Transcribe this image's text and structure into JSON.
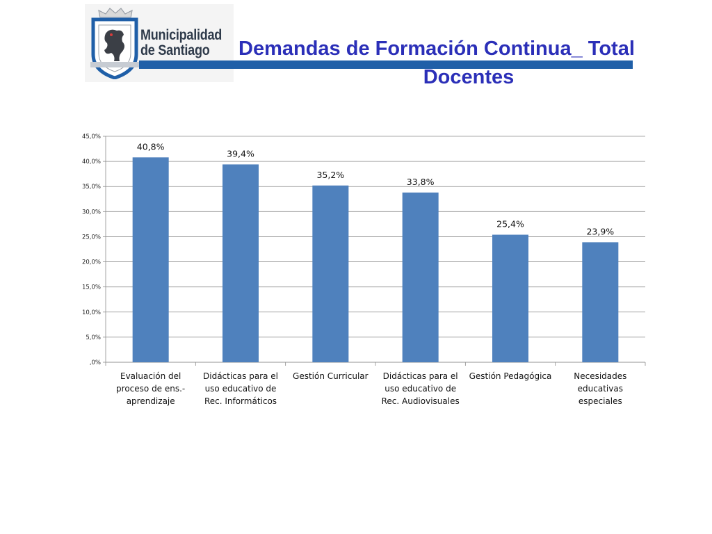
{
  "header": {
    "logo_line1": "Municipalidad",
    "logo_line2": "de Santiago",
    "title_line1": "Demandas de Formación Continua_ Total",
    "title_line2": "Docentes"
  },
  "colors": {
    "bar": "#4f81bd",
    "title": "#2b2fb8",
    "brand_bar": "#1f5fa8"
  },
  "chart_data": {
    "type": "bar",
    "categories": [
      [
        "Evaluación del",
        "proceso de ens.-",
        "aprendizaje"
      ],
      [
        "Didácticas para el",
        "uso educativo de",
        "Rec. Informáticos"
      ],
      [
        "Gestión Curricular"
      ],
      [
        "Didácticas para el",
        "uso educativo de",
        "Rec. Audiovisuales"
      ],
      [
        "Gestión Pedagógica"
      ],
      [
        "Necesidades",
        "educativas",
        "especiales"
      ]
    ],
    "values": [
      40.8,
      39.4,
      35.2,
      33.8,
      25.4,
      23.9
    ],
    "value_labels": [
      "40,8%",
      "39,4%",
      "35,2%",
      "33,8%",
      "25,4%",
      "23,9%"
    ],
    "ylim": [
      0,
      45
    ],
    "yticks": [
      0,
      5,
      10,
      15,
      20,
      25,
      30,
      35,
      40,
      45
    ],
    "ytick_labels": [
      ",0%",
      "5,0%",
      "10,0%",
      "15,0%",
      "20,0%",
      "25,0%",
      "30,0%",
      "35,0%",
      "40,0%",
      "45,0%"
    ],
    "grid": true,
    "legend": "none"
  }
}
